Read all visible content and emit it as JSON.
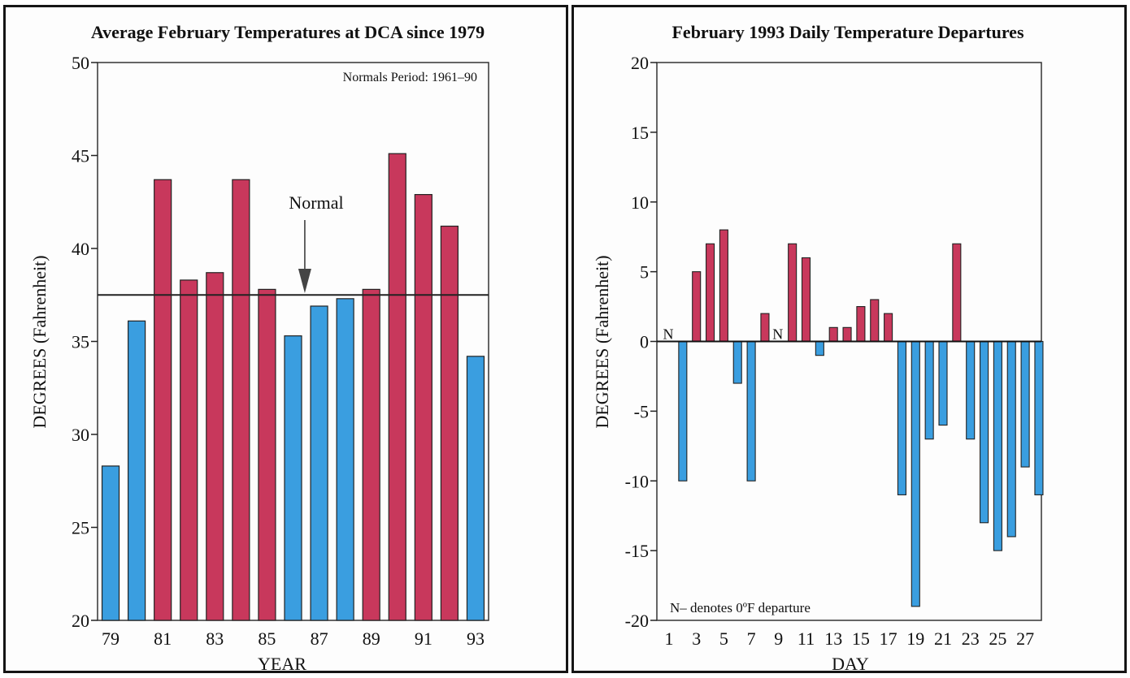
{
  "colors": {
    "above": "#c8385c",
    "below": "#3a9ee0",
    "outline": "#222222"
  },
  "chart_data": [
    {
      "type": "bar",
      "title": "Average February Temperatures at DCA since 1979",
      "xlabel": "YEAR",
      "ylabel": "DEGREES (Fahrenheit)",
      "ylim": [
        20,
        50
      ],
      "yticks": [
        "20",
        "25",
        "30",
        "35",
        "40",
        "45",
        "50"
      ],
      "xticks": [
        "79",
        "81",
        "83",
        "85",
        "87",
        "89",
        "91",
        "93"
      ],
      "categories": [
        "79",
        "80",
        "81",
        "82",
        "83",
        "84",
        "85",
        "86",
        "87",
        "88",
        "89",
        "90",
        "91",
        "92",
        "93"
      ],
      "values": [
        28.3,
        36.1,
        43.7,
        38.3,
        38.7,
        43.7,
        37.8,
        35.3,
        36.9,
        37.3,
        37.8,
        45.1,
        42.9,
        41.2,
        34.2
      ],
      "normal": 37.5,
      "normal_label": "Normal",
      "annotation": "Normals Period: 1961–90",
      "grid": false
    },
    {
      "type": "bar",
      "title": "February 1993 Daily Temperature Departures",
      "xlabel": "DAY",
      "ylabel": "DEGREES (Fahrenheit)",
      "ylim": [
        -20,
        20
      ],
      "yticks": [
        "-20",
        "-15",
        "-10",
        "-5",
        "0",
        "5",
        "10",
        "15",
        "20"
      ],
      "xticks": [
        "1",
        "3",
        "5",
        "7",
        "9",
        "11",
        "13",
        "15",
        "17",
        "19",
        "21",
        "23",
        "25",
        "27"
      ],
      "categories": [
        "1",
        "2",
        "3",
        "4",
        "5",
        "6",
        "7",
        "8",
        "9",
        "10",
        "11",
        "12",
        "13",
        "14",
        "15",
        "16",
        "17",
        "18",
        "19",
        "20",
        "21",
        "22",
        "23",
        "24",
        "25",
        "26",
        "27",
        "28"
      ],
      "values": [
        0,
        -10,
        5,
        7,
        8,
        -3,
        -10,
        2,
        0,
        7,
        6,
        -1,
        1,
        1,
        2.5,
        3,
        2,
        -11,
        -19,
        -7,
        -6,
        7,
        -7,
        -13,
        -15,
        -14,
        -9,
        -11
      ],
      "zero_markers": [
        {
          "day": "1",
          "label": "N"
        },
        {
          "day": "9",
          "label": "N"
        }
      ],
      "annotation": "N– denotes 0ºF departure",
      "grid": false
    }
  ]
}
